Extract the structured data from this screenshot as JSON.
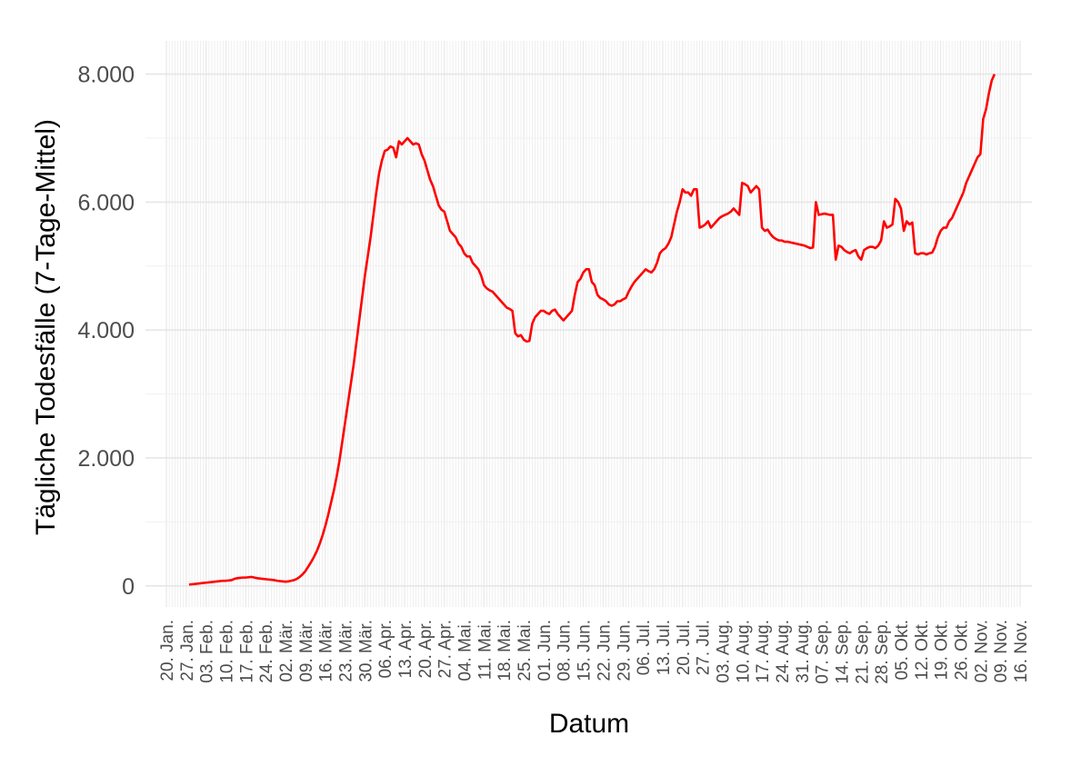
{
  "chart_data": {
    "type": "line",
    "x_label": "Datum",
    "y_label": "Tägliche Todesfälle (7-Tage-Mittel)",
    "color": "#ff0000",
    "grid": true,
    "ylim": [
      -330,
      8520
    ],
    "yticks": [
      0,
      {
        "value": 2000,
        "label": "2.000"
      },
      {
        "value": 4000,
        "label": "4.000"
      },
      {
        "value": 6000,
        "label": "6.000"
      },
      {
        "value": 8000,
        "label": "8.000"
      }
    ],
    "categories": [
      "20. Jan.",
      null,
      null,
      null,
      null,
      null,
      null,
      "27. Jan.",
      null,
      null,
      null,
      null,
      null,
      null,
      "03. Feb.",
      null,
      null,
      null,
      null,
      null,
      null,
      "10. Feb.",
      null,
      null,
      null,
      null,
      null,
      null,
      "17. Feb.",
      null,
      null,
      null,
      null,
      null,
      null,
      "24. Feb.",
      null,
      null,
      null,
      null,
      null,
      null,
      "02. Mär.",
      null,
      null,
      null,
      null,
      null,
      null,
      "09. Mär.",
      null,
      null,
      null,
      null,
      null,
      null,
      "16. Mär.",
      null,
      null,
      null,
      null,
      null,
      null,
      "23. Mär.",
      null,
      null,
      null,
      null,
      null,
      null,
      "30. Mär.",
      null,
      null,
      null,
      null,
      null,
      null,
      "06. Apr.",
      null,
      null,
      null,
      null,
      null,
      null,
      "13. Apr.",
      null,
      null,
      null,
      null,
      null,
      null,
      "20. Apr.",
      null,
      null,
      null,
      null,
      null,
      null,
      "27. Apr.",
      null,
      null,
      null,
      null,
      null,
      null,
      "04. Mai.",
      null,
      null,
      null,
      null,
      null,
      null,
      "11. Mai.",
      null,
      null,
      null,
      null,
      null,
      null,
      "18. Mai.",
      null,
      null,
      null,
      null,
      null,
      null,
      "25. Mai.",
      null,
      null,
      null,
      null,
      null,
      null,
      "01. Jun.",
      null,
      null,
      null,
      null,
      null,
      null,
      "08. Jun.",
      null,
      null,
      null,
      null,
      null,
      null,
      "15. Jun.",
      null,
      null,
      null,
      null,
      null,
      null,
      "22. Jun.",
      null,
      null,
      null,
      null,
      null,
      null,
      "29. Jun.",
      null,
      null,
      null,
      null,
      null,
      null,
      "06. Jul.",
      null,
      null,
      null,
      null,
      null,
      null,
      "13. Jul.",
      null,
      null,
      null,
      null,
      null,
      null,
      "20. Jul.",
      null,
      null,
      null,
      null,
      null,
      null,
      "27. Jul.",
      null,
      null,
      null,
      null,
      null,
      null,
      "03. Aug.",
      null,
      null,
      null,
      null,
      null,
      null,
      "10. Aug.",
      null,
      null,
      null,
      null,
      null,
      null,
      "17. Aug.",
      null,
      null,
      null,
      null,
      null,
      null,
      "24. Aug.",
      null,
      null,
      null,
      null,
      null,
      null,
      "31. Aug.",
      null,
      null,
      null,
      null,
      null,
      null,
      "07. Sep.",
      null,
      null,
      null,
      null,
      null,
      null,
      "14. Sep.",
      null,
      null,
      null,
      null,
      null,
      null,
      "21. Sep.",
      null,
      null,
      null,
      null,
      null,
      null,
      "28. Sep.",
      null,
      null,
      null,
      null,
      null,
      null,
      "05. Okt.",
      null,
      null,
      null,
      null,
      null,
      null,
      "12. Okt.",
      null,
      null,
      null,
      null,
      null,
      null,
      "19. Okt.",
      null,
      null,
      null,
      null,
      null,
      null,
      "26. Okt.",
      null,
      null,
      null,
      null,
      null,
      null,
      "02. Nov.",
      null,
      null,
      null,
      null,
      null,
      null,
      "09. Nov.",
      null,
      null,
      null,
      null,
      null,
      null,
      "16. Nov."
    ],
    "values": [
      null,
      null,
      null,
      null,
      null,
      null,
      null,
      null,
      20,
      25,
      30,
      35,
      40,
      45,
      50,
      55,
      60,
      65,
      70,
      75,
      80,
      80,
      85,
      90,
      110,
      120,
      125,
      130,
      130,
      135,
      140,
      130,
      120,
      115,
      110,
      105,
      100,
      95,
      90,
      80,
      75,
      70,
      65,
      70,
      80,
      90,
      110,
      140,
      180,
      230,
      300,
      370,
      450,
      540,
      650,
      780,
      930,
      1100,
      1290,
      1480,
      1700,
      1950,
      2250,
      2550,
      2850,
      3150,
      3450,
      3800,
      4150,
      4500,
      4850,
      5150,
      5450,
      5800,
      6150,
      6450,
      6650,
      6800,
      6820,
      6870,
      6850,
      6700,
      6950,
      6900,
      6950,
      7000,
      6950,
      6900,
      6920,
      6900,
      6750,
      6650,
      6500,
      6350,
      6250,
      6100,
      5950,
      5880,
      5850,
      5700,
      5550,
      5500,
      5450,
      5350,
      5300,
      5200,
      5150,
      5150,
      5050,
      5000,
      4950,
      4850,
      4700,
      4650,
      4620,
      4600,
      4550,
      4500,
      4450,
      4400,
      4350,
      4330,
      4300,
      3950,
      3900,
      3920,
      3850,
      3820,
      3830,
      4100,
      4200,
      4250,
      4300,
      4300,
      4270,
      4250,
      4300,
      4320,
      4250,
      4200,
      4150,
      4200,
      4250,
      4300,
      4550,
      4750,
      4800,
      4900,
      4950,
      4950,
      4750,
      4700,
      4550,
      4500,
      4480,
      4450,
      4400,
      4380,
      4400,
      4450,
      4450,
      4480,
      4500,
      4600,
      4680,
      4750,
      4800,
      4850,
      4900,
      4950,
      4920,
      4900,
      4950,
      5050,
      5200,
      5250,
      5280,
      5350,
      5450,
      5650,
      5850,
      6000,
      6200,
      6150,
      6150,
      6100,
      6200,
      6200,
      5600,
      5620,
      5650,
      5700,
      5600,
      5650,
      5700,
      5750,
      5780,
      5800,
      5820,
      5850,
      5900,
      5850,
      5800,
      6300,
      6280,
      6250,
      6150,
      6200,
      6250,
      6200,
      5600,
      5550,
      5570,
      5500,
      5450,
      5420,
      5400,
      5400,
      5380,
      5380,
      5370,
      5360,
      5350,
      5340,
      5330,
      5320,
      5300,
      5280,
      5290,
      6000,
      5800,
      5810,
      5820,
      5810,
      5800,
      5800,
      5100,
      5320,
      5300,
      5250,
      5220,
      5200,
      5230,
      5250,
      5150,
      5100,
      5250,
      5280,
      5300,
      5300,
      5280,
      5320,
      5400,
      5700,
      5600,
      5620,
      5650,
      6050,
      6000,
      5900,
      5550,
      5700,
      5650,
      5680,
      5200,
      5180,
      5200,
      5200,
      5180,
      5200,
      5210,
      5300,
      5450,
      5550,
      5600,
      5600,
      5700,
      5750,
      5850,
      5950,
      6050,
      6150,
      6300,
      6400,
      6500,
      6600,
      6700,
      6750,
      7300,
      7450,
      7700,
      7900,
      8000,
      null,
      null,
      null,
      null,
      null,
      null,
      null,
      null,
      null
    ]
  }
}
